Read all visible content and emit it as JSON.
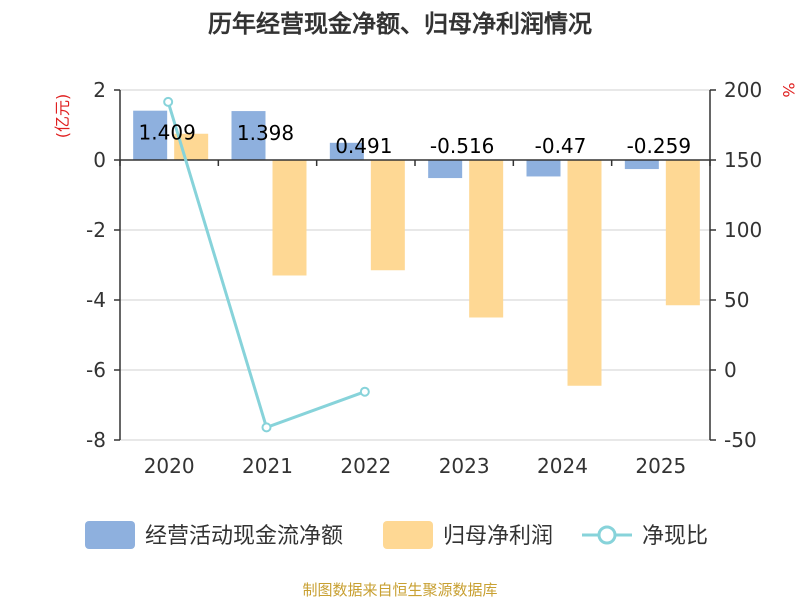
{
  "chart_data": {
    "type": "bar",
    "title": "历年经营现金净额、归母净利润情况",
    "categories": [
      "2020",
      "2021",
      "2022",
      "2023",
      "2024",
      "2025"
    ],
    "series": [
      {
        "name": "经营活动现金流净额",
        "axis": "left",
        "type": "bar",
        "values": [
          1.409,
          1.398,
          0.491,
          -0.516,
          -0.47,
          -0.259
        ],
        "labels": [
          "1.409",
          "1.398",
          "0.491",
          "-0.516",
          "-0.47",
          "-0.259"
        ]
      },
      {
        "name": "归母净利润",
        "axis": "left",
        "type": "bar",
        "values": [
          0.75,
          -3.3,
          -3.15,
          -4.5,
          -6.45,
          -4.15
        ]
      },
      {
        "name": "净现比",
        "axis": "right",
        "type": "line",
        "values": [
          191.5,
          -41,
          -15.5,
          null,
          null,
          null
        ]
      }
    ],
    "left_axis": {
      "unit": "(亿元)",
      "ylim": [
        -8,
        2
      ],
      "ticks": [
        "2",
        "0",
        "-2",
        "-4",
        "-6",
        "-8"
      ]
    },
    "right_axis": {
      "unit": "%",
      "ylim": [
        -50,
        200
      ],
      "ticks": [
        "200",
        "150",
        "100",
        "50",
        "0",
        "-50"
      ]
    },
    "colors": {
      "bar1": "#8eb0de",
      "bar2": "#fed894",
      "line": "#87d3da",
      "grid": "#d0d0d0",
      "axis": "#333333"
    },
    "source": "制图数据来自恒生聚源数据库"
  }
}
